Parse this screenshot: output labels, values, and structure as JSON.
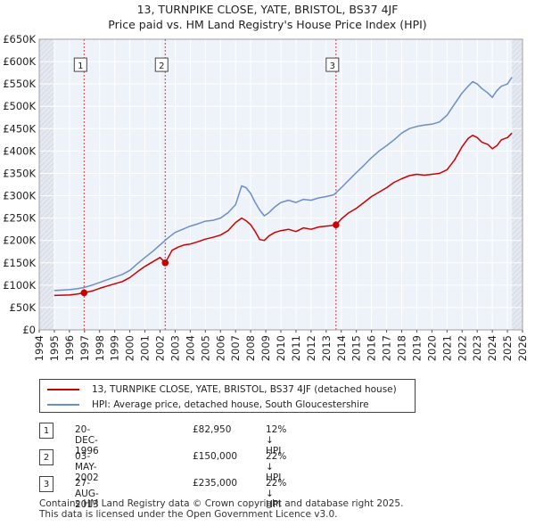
{
  "title_line1": "13, TURNPIKE CLOSE, YATE, BRISTOL, BS37 4JF",
  "title_line2": "Price paid vs. HM Land Registry's House Price Index (HPI)",
  "chart_data": {
    "type": "line",
    "title": "13, TURNPIKE CLOSE, YATE, BRISTOL, BS37 4JF — Price paid vs. HM Land Registry's House Price Index (HPI)",
    "xlabel": "",
    "ylabel": "",
    "xlim": [
      1994,
      2026
    ],
    "ylim": [
      0,
      650000
    ],
    "x_ticks": [
      "1994",
      "1995",
      "1996",
      "1997",
      "1998",
      "1999",
      "2000",
      "2001",
      "2002",
      "2003",
      "2004",
      "2005",
      "2006",
      "2007",
      "2008",
      "2009",
      "2010",
      "2011",
      "2012",
      "2013",
      "2014",
      "2015",
      "2016",
      "2017",
      "2018",
      "2019",
      "2020",
      "2021",
      "2022",
      "2023",
      "2024",
      "2025",
      "2026"
    ],
    "y_ticks": [
      {
        "value": 0,
        "label": "£0"
      },
      {
        "value": 50000,
        "label": "£50K"
      },
      {
        "value": 100000,
        "label": "£100K"
      },
      {
        "value": 150000,
        "label": "£150K"
      },
      {
        "value": 200000,
        "label": "£200K"
      },
      {
        "value": 250000,
        "label": "£250K"
      },
      {
        "value": 300000,
        "label": "£300K"
      },
      {
        "value": 350000,
        "label": "£350K"
      },
      {
        "value": 400000,
        "label": "£400K"
      },
      {
        "value": 450000,
        "label": "£450K"
      },
      {
        "value": 500000,
        "label": "£500K"
      },
      {
        "value": 550000,
        "label": "£550K"
      },
      {
        "value": 600000,
        "label": "£600K"
      },
      {
        "value": 650000,
        "label": "£650K"
      }
    ],
    "grid": true,
    "series": [
      {
        "name": "13, TURNPIKE CLOSE, YATE, BRISTOL, BS37 4JF (detached house)",
        "color": "#cc0000",
        "x": [
          1995.0,
          1995.5,
          1996.0,
          1996.5,
          1996.97,
          1997.5,
          1998.0,
          1998.5,
          1999.0,
          1999.5,
          2000.0,
          2000.5,
          2001.0,
          2001.5,
          2002.0,
          2002.34,
          2002.8,
          2003.2,
          2003.6,
          2004.0,
          2004.5,
          2005.0,
          2005.5,
          2006.0,
          2006.5,
          2007.0,
          2007.4,
          2007.7,
          2008.0,
          2008.3,
          2008.6,
          2008.9,
          2009.2,
          2009.6,
          2010.0,
          2010.5,
          2011.0,
          2011.5,
          2012.0,
          2012.5,
          2013.0,
          2013.3,
          2013.65,
          2014.0,
          2014.5,
          2015.0,
          2015.5,
          2016.0,
          2016.5,
          2017.0,
          2017.5,
          2018.0,
          2018.5,
          2019.0,
          2019.5,
          2020.0,
          2020.5,
          2021.0,
          2021.5,
          2022.0,
          2022.4,
          2022.7,
          2023.0,
          2023.3,
          2023.7,
          2024.0,
          2024.3,
          2024.6,
          2025.0,
          2025.3
        ],
        "values": [
          77000,
          77500,
          78000,
          80000,
          82950,
          87000,
          93000,
          98000,
          103000,
          108000,
          117000,
          130000,
          142000,
          152000,
          162000,
          150000,
          178000,
          185000,
          190000,
          192000,
          197000,
          203000,
          207000,
          212000,
          222000,
          240000,
          250000,
          244000,
          235000,
          220000,
          202000,
          200000,
          210000,
          218000,
          222000,
          225000,
          220000,
          228000,
          225000,
          230000,
          232000,
          233000,
          235000,
          248000,
          262000,
          272000,
          285000,
          298000,
          308000,
          318000,
          330000,
          338000,
          345000,
          348000,
          346000,
          348000,
          350000,
          358000,
          380000,
          410000,
          428000,
          435000,
          430000,
          420000,
          415000,
          405000,
          412000,
          425000,
          430000,
          440000
        ]
      },
      {
        "name": "HPI: Average price, detached house, South Gloucestershire",
        "color": "#6b8fc5",
        "x": [
          1995.0,
          1995.5,
          1996.0,
          1996.5,
          1997.0,
          1997.5,
          1998.0,
          1998.5,
          1999.0,
          1999.5,
          2000.0,
          2000.5,
          2001.0,
          2001.5,
          2002.0,
          2002.5,
          2003.0,
          2003.5,
          2004.0,
          2004.5,
          2005.0,
          2005.5,
          2006.0,
          2006.5,
          2007.0,
          2007.4,
          2007.7,
          2008.0,
          2008.3,
          2008.6,
          2008.9,
          2009.2,
          2009.6,
          2010.0,
          2010.5,
          2011.0,
          2011.5,
          2012.0,
          2012.5,
          2013.0,
          2013.5,
          2014.0,
          2014.5,
          2015.0,
          2015.5,
          2016.0,
          2016.5,
          2017.0,
          2017.5,
          2018.0,
          2018.5,
          2019.0,
          2019.5,
          2020.0,
          2020.5,
          2021.0,
          2021.5,
          2022.0,
          2022.4,
          2022.7,
          2023.0,
          2023.3,
          2023.7,
          2024.0,
          2024.3,
          2024.6,
          2025.0,
          2025.3
        ],
        "values": [
          88000,
          89000,
          90000,
          92000,
          95000,
          100000,
          106000,
          112000,
          118000,
          124000,
          133000,
          148000,
          162000,
          175000,
          190000,
          205000,
          218000,
          225000,
          232000,
          237000,
          243000,
          245000,
          250000,
          262000,
          280000,
          322000,
          318000,
          305000,
          285000,
          268000,
          255000,
          262000,
          275000,
          285000,
          290000,
          285000,
          292000,
          290000,
          295000,
          298000,
          302000,
          318000,
          335000,
          352000,
          368000,
          385000,
          400000,
          412000,
          425000,
          440000,
          450000,
          455000,
          458000,
          460000,
          465000,
          480000,
          505000,
          530000,
          545000,
          555000,
          550000,
          540000,
          530000,
          520000,
          535000,
          545000,
          550000,
          565000
        ]
      }
    ],
    "sales": [
      {
        "label": "1",
        "x": 1996.97,
        "value": 82950
      },
      {
        "label": "2",
        "x": 2002.34,
        "value": 150000
      },
      {
        "label": "3",
        "x": 2013.65,
        "value": 235000
      }
    ],
    "marker_box_value": 592000,
    "shade_ranges": [
      [
        1994,
        1995
      ],
      [
        2025.3,
        2026
      ]
    ]
  },
  "legend": {
    "items": [
      {
        "label": "13, TURNPIKE CLOSE, YATE, BRISTOL, BS37 4JF (detached house)",
        "color": "#cc0000"
      },
      {
        "label": "HPI: Average price, detached house, South Gloucestershire",
        "color": "#6b8fc5"
      }
    ]
  },
  "sales_table": [
    {
      "num": "1",
      "date": "20-DEC-1996",
      "price": "£82,950",
      "hpi": "12% ↓ HPI"
    },
    {
      "num": "2",
      "date": "03-MAY-2002",
      "price": "£150,000",
      "hpi": "22% ↓ HPI"
    },
    {
      "num": "3",
      "date": "27-AUG-2013",
      "price": "£235,000",
      "hpi": "22% ↓ HPI"
    }
  ],
  "footer": {
    "line1": "Contains HM Land Registry data © Crown copyright and database right 2025.",
    "line2": "This data is licensed under the Open Government Licence v3.0."
  }
}
